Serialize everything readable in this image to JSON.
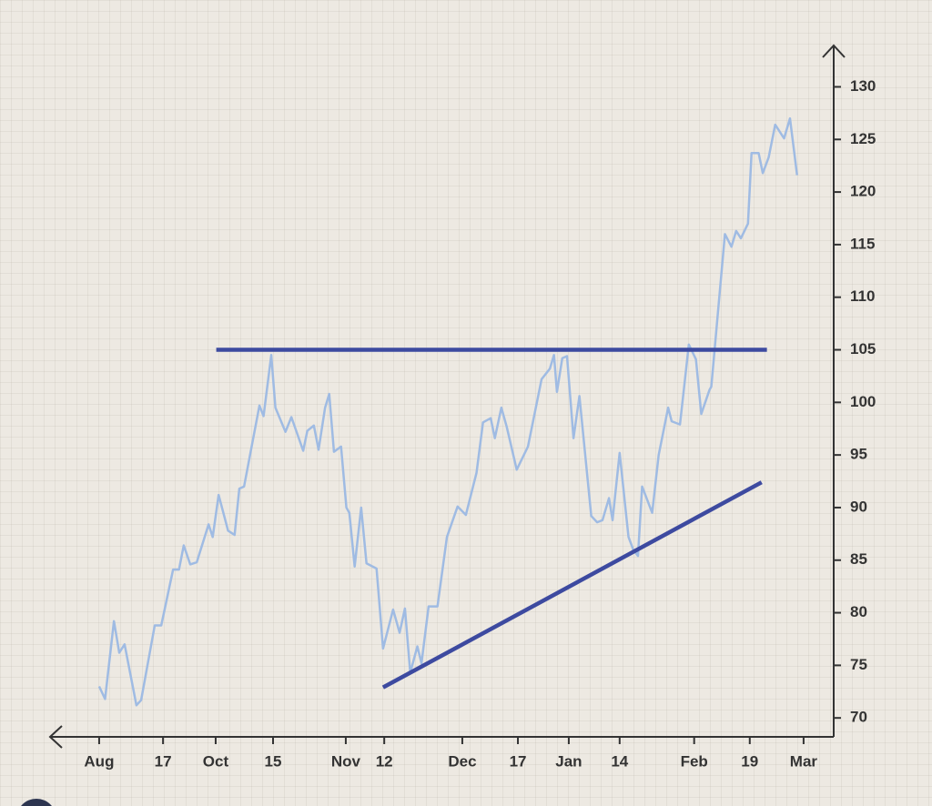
{
  "chart_data": {
    "type": "line",
    "x": [
      0,
      1,
      2.5,
      3.4,
      4.3,
      6.3,
      7.1,
      9.4,
      10.5,
      12.5,
      13.5,
      14.3,
      15.4,
      16.5,
      18.5,
      19.2,
      20.2,
      21.8,
      22.9,
      23.7,
      24.5,
      27.1,
      27.8,
      29.1,
      29.8,
      31.5,
      32.5,
      34.5,
      35.2,
      36.3,
      37.1,
      38.2,
      38.9,
      39.7,
      40.9,
      41.8,
      42.3,
      43.2,
      44.3,
      45.2,
      46.9,
      48,
      49.7,
      50.8,
      51.7,
      52.6,
      53.8,
      54.5,
      55.7,
      57.2,
      58.8,
      60.6,
      62,
      63.8,
      64.9,
      66.2,
      66.9,
      68,
      68.9,
      70.6,
      72.5,
      74.8,
      76.2,
      76.9,
      77.4,
      78.3,
      79.1,
      80.2,
      81.2,
      83.2,
      84.2,
      85.1,
      86.2,
      86.8,
      88,
      89.5,
      90.3,
      91.1,
      91.8,
      93.5,
      94.6,
      96.2,
      96.8,
      98.2,
      99.7,
      100.9,
      101.8,
      103.2,
      103.5,
      105.8,
      106.9,
      107.7,
      108.5,
      109.7,
      110.3,
      111.5,
      112.2,
      113.2,
      114.3,
      115.8,
      116.8,
      118
    ],
    "values": [
      73,
      71.8,
      79.2,
      76.2,
      77,
      71.2,
      71.7,
      78.8,
      78.8,
      84.1,
      84.1,
      86.4,
      84.6,
      84.8,
      88.4,
      87.2,
      91.2,
      87.8,
      87.4,
      91.8,
      92,
      99.7,
      98.7,
      104.5,
      99.5,
      97.2,
      98.6,
      95.4,
      97.3,
      97.8,
      95.5,
      99.5,
      100.8,
      95.3,
      95.8,
      90,
      89.5,
      84.4,
      90,
      84.7,
      84.2,
      76.6,
      80.3,
      78.1,
      80.4,
      74.3,
      76.8,
      75.2,
      80.6,
      80.6,
      87.2,
      90.1,
      89.3,
      93.3,
      98.1,
      98.5,
      96.6,
      99.5,
      97.7,
      93.6,
      95.8,
      102.2,
      103.2,
      104.5,
      101,
      104.2,
      104.4,
      96.6,
      100.6,
      89.2,
      88.6,
      88.8,
      90.9,
      88.8,
      95.2,
      87.2,
      86,
      85.4,
      92,
      89.5,
      95,
      99.5,
      98.2,
      97.9,
      105.5,
      104.1,
      98.9,
      101.2,
      101.5,
      116,
      114.8,
      116.3,
      115.6,
      117,
      123.7,
      123.7,
      121.8,
      123.3,
      126.4,
      125.1,
      127,
      121.6
    ],
    "color": "#9fbbe3",
    "trend_lines": [
      {
        "x": [
          19.8,
          112.9
        ],
        "y": [
          105,
          105
        ],
        "color": "#3d4aa0"
      },
      {
        "x": [
          48,
          112
        ],
        "y": [
          72.9,
          92.4
        ],
        "color": "#3d4aa0"
      }
    ],
    "xlim": [
      -8.3,
      124.5
    ],
    "ylim": [
      68.2,
      133.5
    ],
    "xticks": [
      {
        "value": 0,
        "label": "Aug"
      },
      {
        "value": 10.8,
        "label": "17"
      },
      {
        "value": 19.7,
        "label": "Oct"
      },
      {
        "value": 29.4,
        "label": "15"
      },
      {
        "value": 41.7,
        "label": "Nov"
      },
      {
        "value": 48.2,
        "label": "12"
      },
      {
        "value": 61.4,
        "label": "Dec"
      },
      {
        "value": 70.8,
        "label": "17"
      },
      {
        "value": 79.4,
        "label": "Jan"
      },
      {
        "value": 88,
        "label": "14"
      },
      {
        "value": 100.6,
        "label": "Feb"
      },
      {
        "value": 110,
        "label": "19"
      },
      {
        "value": 119.1,
        "label": "Mar"
      }
    ],
    "yticks": [
      70,
      75,
      80,
      85,
      90,
      95,
      100,
      105,
      110,
      115,
      120,
      125,
      130
    ]
  }
}
